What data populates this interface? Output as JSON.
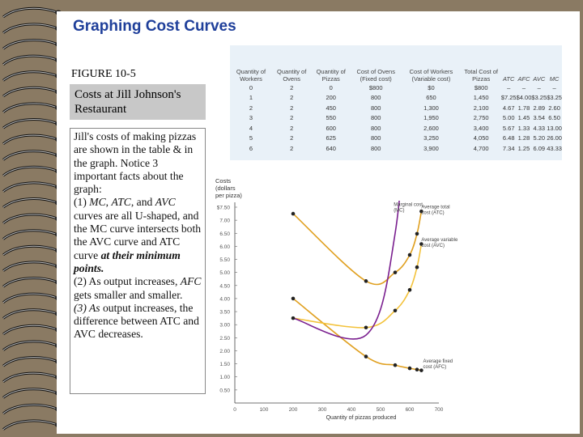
{
  "slide": {
    "title": "Graphing Cost Curves",
    "figure_label": "FIGURE 10-5",
    "figure_caption": "Costs at Jill Johnson's Restaurant",
    "body_lines": [
      {
        "html": "Jill's costs of making pizzas are shown in the table & in the graph. Notice 3 important facts about the graph:"
      },
      {
        "html": "(1) <i>MC</i>, <i>ATC</i>, and <i>AVC</i> curves are all U-shaped, and the MC curve intersects both the AVC curve and ATC curve <b><i>at their minimum points.</i></b>"
      },
      {
        "html": "(2) As output increases, <i>AFC</i> gets smaller and smaller."
      },
      {
        "html": "<i>(3) As</i> output increases, the difference between ATC and AVC decreases."
      }
    ],
    "colors": {
      "title": "#1f3f9a",
      "mc": "#7a1f8f",
      "atc": "#e0a020",
      "avc": "#f3c23a",
      "afc": "#e0a020",
      "table_bg": "#e9f1f8"
    }
  },
  "table": {
    "headers": [
      "Quantity of Workers",
      "Quantity of Ovens",
      "Quantity of Pizzas",
      "Cost of Ovens (Fixed cost)",
      "Cost of Workers (Variable cost)",
      "Total Cost of Pizzas",
      "ATC",
      "AFC",
      "AVC",
      "MC"
    ],
    "rows": [
      [
        "0",
        "2",
        "0",
        "$800",
        "$0",
        "$800",
        "–",
        "–",
        "–",
        "–"
      ],
      [
        "1",
        "2",
        "200",
        "800",
        "650",
        "1,450",
        "$7.25",
        "$4.00",
        "$3.25",
        "$3.25"
      ],
      [
        "2",
        "2",
        "450",
        "800",
        "1,300",
        "2,100",
        "4.67",
        "1.78",
        "2.89",
        "2.60"
      ],
      [
        "3",
        "2",
        "550",
        "800",
        "1,950",
        "2,750",
        "5.00",
        "1.45",
        "3.54",
        "6.50"
      ],
      [
        "4",
        "2",
        "600",
        "800",
        "2,600",
        "3,400",
        "5.67",
        "1.33",
        "4.33",
        "13.00"
      ],
      [
        "5",
        "2",
        "625",
        "800",
        "3,250",
        "4,050",
        "6.48",
        "1.28",
        "5.20",
        "26.00"
      ],
      [
        "6",
        "2",
        "640",
        "800",
        "3,900",
        "4,700",
        "7.34",
        "1.25",
        "6.09",
        "43.33"
      ]
    ]
  },
  "chart_data": {
    "type": "line",
    "ylabel_lines": [
      "Costs",
      "(dollars",
      "per pizza)"
    ],
    "xlabel": "Quantity of pizzas produced",
    "xlim": [
      0,
      700
    ],
    "ylim": [
      0,
      7.5
    ],
    "x_ticks": [
      0,
      100,
      200,
      300,
      400,
      500,
      600,
      700
    ],
    "y_ticks": [
      {
        "v": 0.5,
        "label": "0.50"
      },
      {
        "v": 1.0,
        "label": "1.00"
      },
      {
        "v": 1.5,
        "label": "1.50"
      },
      {
        "v": 2.0,
        "label": "2.00"
      },
      {
        "v": 2.5,
        "label": "2.50"
      },
      {
        "v": 3.0,
        "label": "3.00"
      },
      {
        "v": 3.5,
        "label": "3.50"
      },
      {
        "v": 4.0,
        "label": "4.00"
      },
      {
        "v": 4.5,
        "label": "4.50"
      },
      {
        "v": 5.0,
        "label": "5.00"
      },
      {
        "v": 5.5,
        "label": "5.50"
      },
      {
        "v": 6.0,
        "label": "6.00"
      },
      {
        "v": 6.5,
        "label": "6.50"
      },
      {
        "v": 7.0,
        "label": "7.00"
      },
      {
        "v": 7.5,
        "label": "$7.50"
      }
    ],
    "grid": false,
    "series": [
      {
        "key": "mc",
        "name": "Marginal cost (MC)",
        "color": "#7a1f8f",
        "smooth": true,
        "points": [
          [
            200,
            3.25
          ],
          [
            450,
            2.6
          ],
          [
            550,
            6.5
          ],
          [
            600,
            13.0
          ]
        ]
      },
      {
        "key": "atc",
        "name": "Average total cost (ATC)",
        "color": "#e0a020",
        "points": [
          [
            200,
            7.25
          ],
          [
            450,
            4.67
          ],
          [
            550,
            5.0
          ],
          [
            600,
            5.67
          ],
          [
            625,
            6.48
          ],
          [
            640,
            7.34
          ]
        ]
      },
      {
        "key": "avc",
        "name": "Average variable cost (AVC)",
        "color": "#f3c23a",
        "points": [
          [
            200,
            3.25
          ],
          [
            450,
            2.89
          ],
          [
            550,
            3.54
          ],
          [
            600,
            4.33
          ],
          [
            625,
            5.2
          ],
          [
            640,
            6.09
          ]
        ]
      },
      {
        "key": "afc",
        "name": "Average fixed cost (AFC)",
        "color": "#e0a020",
        "points": [
          [
            200,
            4.0
          ],
          [
            450,
            1.78
          ],
          [
            550,
            1.45
          ],
          [
            600,
            1.33
          ],
          [
            625,
            1.28
          ],
          [
            640,
            1.25
          ]
        ]
      }
    ],
    "labels": [
      {
        "series": "mc",
        "lines": [
          "Marginal cost",
          "(MC)"
        ],
        "anchor": [
          545,
          7.55
        ]
      },
      {
        "series": "atc",
        "lines": [
          "Average total",
          "cost (ATC)"
        ],
        "anchor": [
          640,
          7.45
        ]
      },
      {
        "series": "avc",
        "lines": [
          "Average variable",
          "cost (AVC)"
        ],
        "anchor": [
          640,
          6.2
        ]
      },
      {
        "series": "afc",
        "lines": [
          "Average fixed",
          "cost (AFC)"
        ],
        "anchor": [
          646,
          1.55
        ]
      }
    ]
  }
}
